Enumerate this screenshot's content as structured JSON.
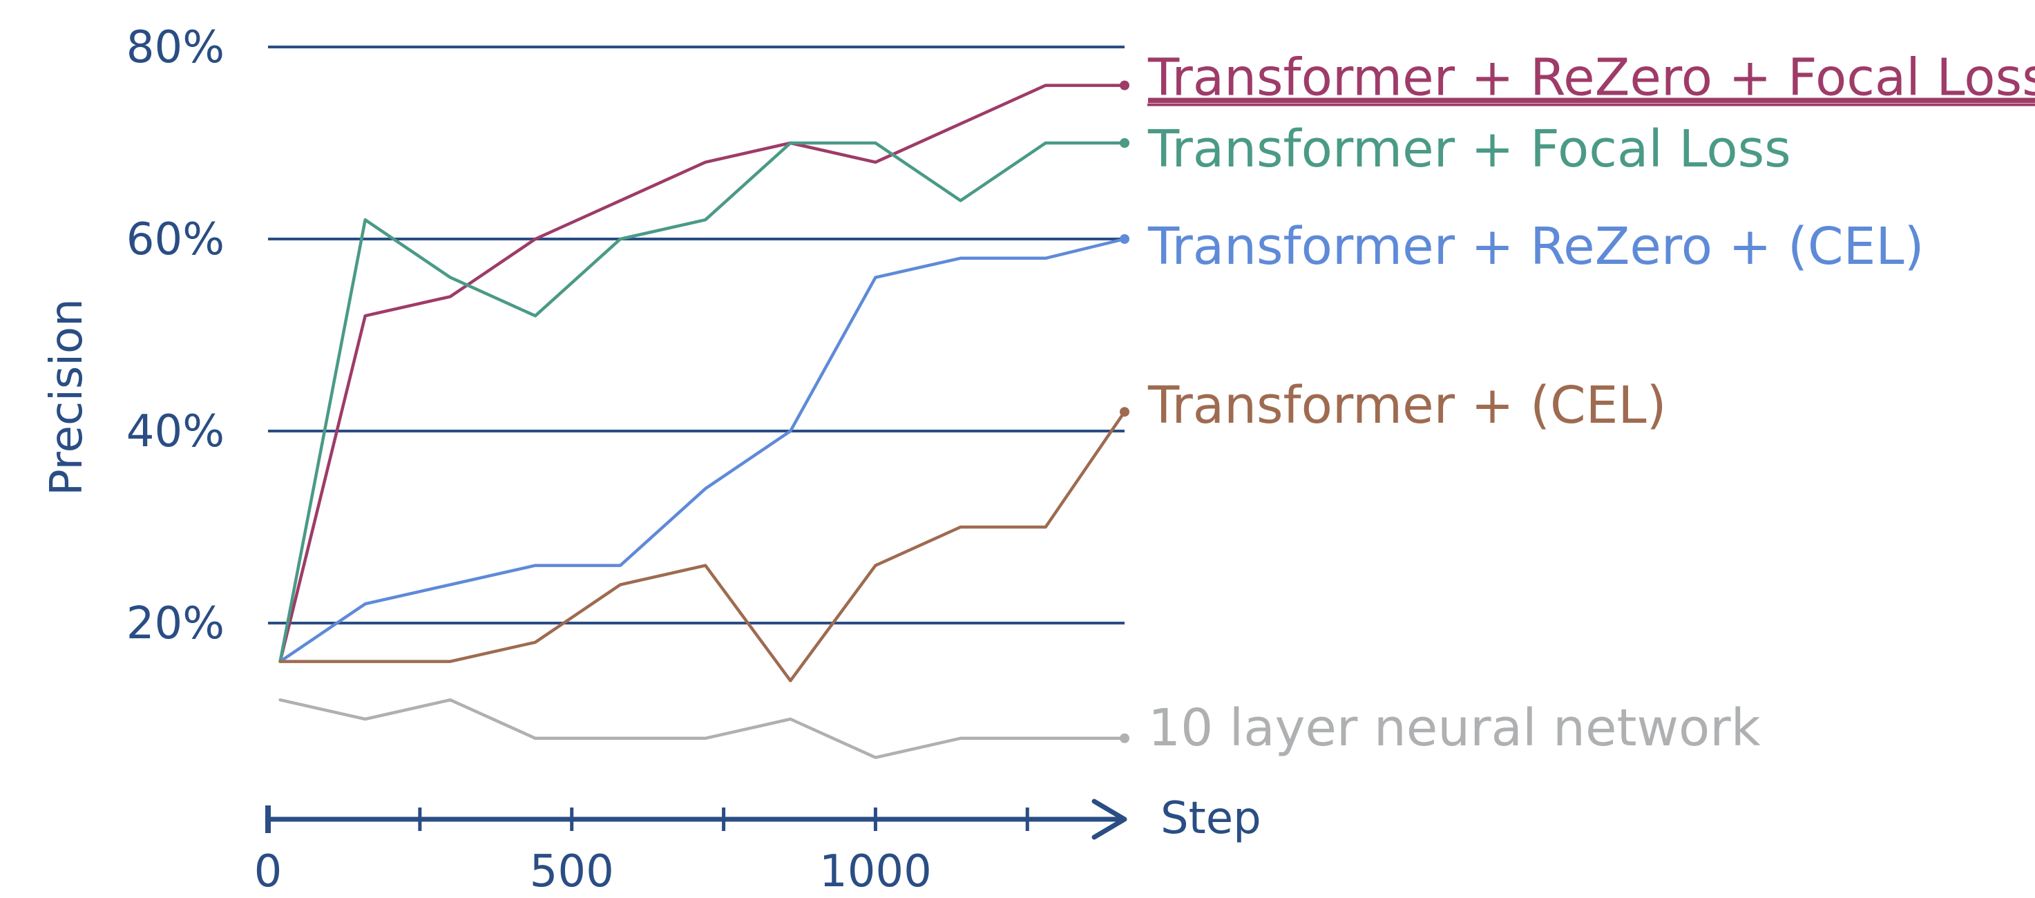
{
  "chart_data": {
    "type": "line",
    "xlabel": "Step",
    "ylabel": "Precision",
    "xlim": [
      0,
      1410
    ],
    "ylim": [
      0,
      80
    ],
    "yticks": [
      20,
      40,
      60,
      80
    ],
    "ytick_labels": [
      "20%",
      "40%",
      "60%",
      "80%"
    ],
    "xticks": [
      0,
      250,
      500,
      750,
      1000,
      1250
    ],
    "xtick_labels": [
      "0",
      "",
      "500",
      "",
      "1000",
      ""
    ],
    "grid": "horizontal",
    "legend": "inline labels at line ends (right)",
    "x": [
      20,
      160,
      300,
      440,
      580,
      720,
      860,
      1000,
      1140,
      1280,
      1410
    ],
    "series": [
      {
        "name": "Transformer + ReZero + Focal Loss",
        "color": "#9e3b68",
        "underline": true,
        "values": [
          16,
          52,
          54,
          60,
          64,
          68,
          70,
          68,
          72,
          76,
          76
        ]
      },
      {
        "name": "Transformer + Focal Loss",
        "color": "#4a9a86",
        "values": [
          16,
          62,
          56,
          52,
          60,
          62,
          70,
          70,
          64,
          70,
          70
        ]
      },
      {
        "name": "Transformer + ReZero + (CEL)",
        "color": "#5e8ad8",
        "values": [
          16,
          22,
          24,
          26,
          26,
          34,
          40,
          56,
          58,
          58,
          60
        ]
      },
      {
        "name": "Transformer + (CEL)",
        "color": "#9e6b50",
        "values": [
          16,
          16,
          16,
          18,
          24,
          26,
          14,
          26,
          30,
          30,
          42
        ]
      },
      {
        "name": "10 layer neural network",
        "color": "#aeb0b2",
        "values": [
          12,
          10,
          12,
          8,
          8,
          8,
          10,
          6,
          8,
          8,
          8
        ]
      }
    ]
  },
  "colors": {
    "axis": "#2a4d84",
    "gridline": "#2a4d84"
  }
}
